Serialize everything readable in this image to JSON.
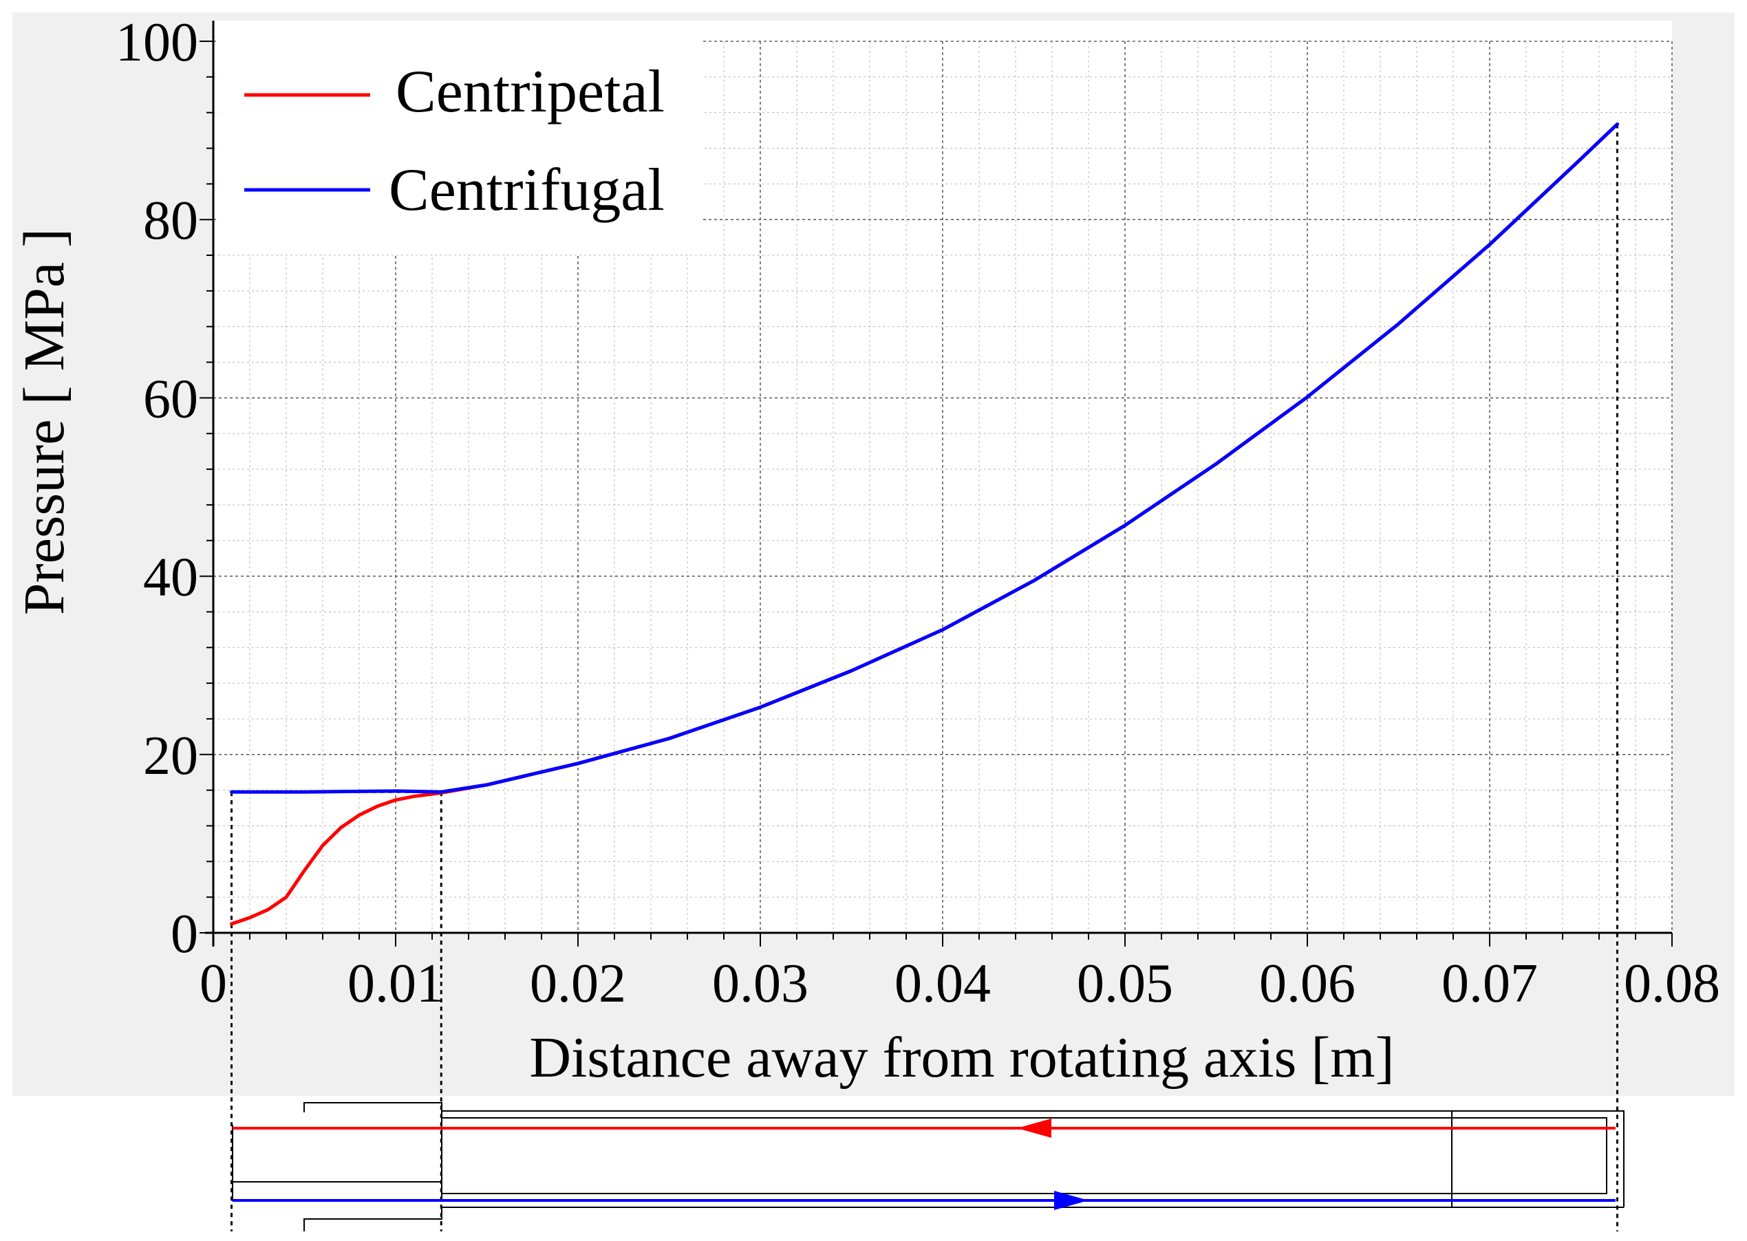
{
  "chart_data": {
    "type": "line",
    "title": "",
    "xlabel": "Distance away from rotating axis [m]",
    "ylabel": "Pressure [ MPa ]",
    "xlim": [
      0,
      0.08
    ],
    "ylim": [
      0,
      100
    ],
    "xticks": [
      0,
      0.01,
      0.02,
      0.03,
      0.04,
      0.05,
      0.06,
      0.07,
      0.08
    ],
    "xtick_labels": [
      "0",
      "0.01",
      "0.02",
      "0.03",
      "0.04",
      "0.05",
      "0.06",
      "0.07",
      "0.08"
    ],
    "yticks": [
      0,
      20,
      40,
      60,
      80,
      100
    ],
    "ytick_labels": [
      "0",
      "20",
      "40",
      "60",
      "80",
      "100"
    ],
    "grid": true,
    "legend_position": "top-left",
    "series": [
      {
        "name": "Centripetal",
        "color": "#ff0000",
        "x": [
          0.001,
          0.002,
          0.003,
          0.004,
          0.005,
          0.006,
          0.007,
          0.008,
          0.009,
          0.01,
          0.011,
          0.0125,
          0.015,
          0.02,
          0.025,
          0.03,
          0.035,
          0.04,
          0.045,
          0.05,
          0.055,
          0.06,
          0.065,
          0.07,
          0.075,
          0.077
        ],
        "y": [
          1.0,
          1.7,
          2.6,
          4.0,
          7.0,
          9.8,
          11.8,
          13.2,
          14.2,
          14.9,
          15.3,
          15.7,
          16.6,
          19.0,
          21.8,
          25.3,
          29.4,
          34.0,
          39.5,
          45.7,
          52.6,
          60.1,
          68.3,
          77.2,
          86.8,
          90.7
        ]
      },
      {
        "name": "Centrifugal",
        "color": "#0000ff",
        "x": [
          0.001,
          0.005,
          0.01,
          0.0125,
          0.015,
          0.02,
          0.025,
          0.03,
          0.035,
          0.04,
          0.045,
          0.05,
          0.055,
          0.06,
          0.065,
          0.07,
          0.075,
          0.077
        ],
        "y": [
          15.8,
          15.8,
          15.9,
          15.8,
          16.6,
          19.0,
          21.8,
          25.3,
          29.4,
          34.0,
          39.5,
          45.7,
          52.6,
          60.1,
          68.3,
          77.2,
          86.8,
          90.7
        ]
      }
    ],
    "guides": {
      "x_markers": [
        0.001,
        0.0125,
        0.077
      ]
    }
  }
}
